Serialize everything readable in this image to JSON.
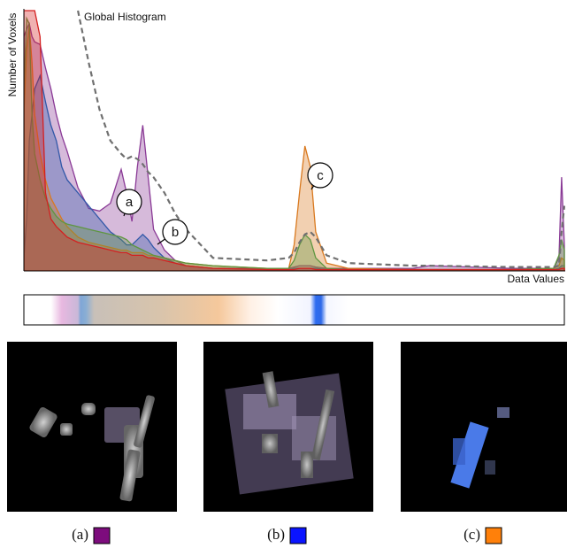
{
  "chart_data": {
    "type": "area",
    "y_label": "Number of Voxels",
    "x_label": "Data Values",
    "xlim": [
      0,
      100
    ],
    "ylim": [
      0,
      100
    ],
    "x": [
      0,
      0.5,
      1,
      1.5,
      2,
      3,
      4,
      5,
      6,
      7,
      8,
      10,
      12,
      14,
      16,
      18,
      19,
      20,
      21,
      22,
      23,
      24,
      26,
      28,
      30,
      35,
      45,
      49,
      50,
      51,
      52,
      53,
      54,
      56,
      60,
      72,
      75,
      90,
      98,
      99,
      99.5,
      100
    ],
    "series": [
      {
        "color": "#8a3a96",
        "values": [
          90,
          93,
          95,
          90,
          88,
          87,
          78,
          70,
          60,
          52,
          46,
          32,
          24,
          23,
          26,
          39,
          30,
          19,
          40,
          56,
          36,
          16,
          8,
          4,
          2,
          1,
          1,
          1,
          1.5,
          2,
          2,
          2,
          1.5,
          1,
          1,
          1,
          2,
          1,
          1,
          5,
          36,
          10
        ]
      },
      {
        "color": "#3258a8",
        "values": [
          5,
          20,
          50,
          60,
          70,
          75,
          65,
          56,
          50,
          40,
          35,
          30,
          25,
          20,
          15,
          12,
          10,
          10,
          12,
          14,
          12,
          9,
          5,
          3,
          2,
          1,
          0.5,
          0.5,
          1,
          1,
          1,
          1,
          1,
          0.5,
          0.5,
          0.5,
          0.5,
          0.5,
          0.5,
          1,
          2,
          2
        ]
      },
      {
        "color": "#d9791f",
        "values": [
          60,
          85,
          94,
          80,
          60,
          45,
          35,
          28,
          24,
          20,
          17,
          13,
          11,
          10,
          9,
          8,
          8,
          7,
          7,
          7,
          6,
          6,
          5,
          4,
          3,
          2,
          1,
          1,
          10,
          30,
          48,
          40,
          15,
          3,
          1,
          0.5,
          0.5,
          0.5,
          1,
          2,
          5,
          4
        ]
      },
      {
        "color": "#5e9640",
        "values": [
          70,
          97,
          95,
          60,
          45,
          35,
          28,
          24,
          21,
          19,
          18,
          17,
          16,
          15,
          14,
          13,
          12,
          10,
          9,
          8,
          7,
          6,
          5,
          4,
          3,
          2,
          1,
          1,
          4,
          10,
          14,
          12,
          5,
          1,
          0.5,
          0.5,
          0.5,
          0.5,
          1,
          6,
          12,
          8
        ]
      },
      {
        "color": "#d42020",
        "values": [
          100,
          100,
          100,
          100,
          100,
          90,
          30,
          20,
          17,
          15,
          13,
          11,
          10,
          9,
          8,
          7,
          7,
          6,
          6,
          6,
          5,
          5,
          4,
          3,
          2,
          1,
          0.5,
          0.5,
          0.5,
          1,
          1,
          1,
          0.5,
          0.5,
          0.5,
          0.5,
          0.5,
          0.5,
          0.5,
          0.5,
          1,
          1
        ]
      },
      {
        "name": "Global Histogram",
        "color": "#707070",
        "dashed": true,
        "values": [
          null,
          null,
          null,
          null,
          null,
          null,
          null,
          null,
          null,
          null,
          null,
          100,
          80,
          62,
          50,
          45,
          43,
          44,
          43,
          41,
          38,
          36,
          30,
          22,
          16,
          5,
          4,
          5,
          7,
          11,
          14,
          15,
          13,
          6,
          3,
          2,
          2,
          1.5,
          1.5,
          2,
          15,
          25
        ]
      }
    ],
    "annotations": [
      "a",
      "b",
      "c"
    ]
  },
  "panels": [
    {
      "caption": "(a)",
      "color": "#7d0c7d"
    },
    {
      "caption": "(b)",
      "color": "#0a14ff"
    },
    {
      "caption": "(c)",
      "color": "#ff800a"
    }
  ]
}
